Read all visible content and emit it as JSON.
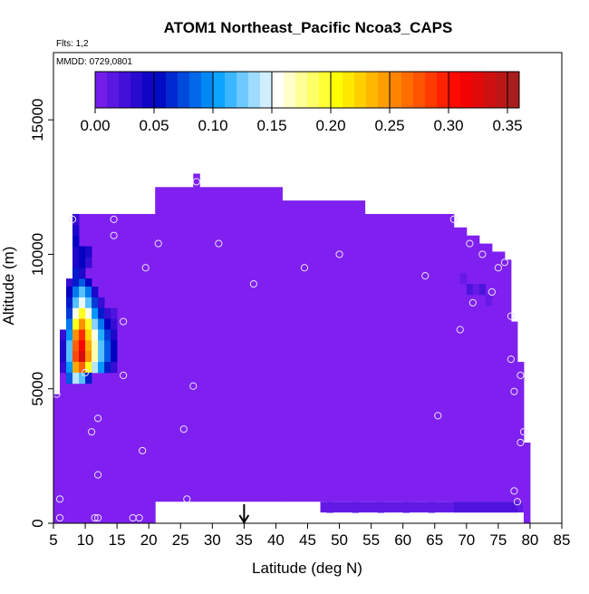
{
  "chart_data": {
    "type": "heatmap",
    "title": "ATOM1 Northeast_Pacific Ncoa3_CAPS",
    "note_flights": "Flts: 1,2",
    "note_dates": "MMDD: 0729,0801",
    "xlabel": "Latitude (deg N)",
    "ylabel": "Altitude (m)",
    "xlim": [
      5,
      85
    ],
    "ylim": [
      0,
      17500
    ],
    "x_ticks": [
      5,
      10,
      15,
      20,
      25,
      30,
      35,
      40,
      45,
      50,
      55,
      60,
      65,
      70,
      75,
      80,
      85
    ],
    "x_tick_labels": [
      "5",
      "10",
      "15",
      "20",
      "25",
      "30",
      "35",
      "40",
      "45",
      "50",
      "55",
      "60",
      "65",
      "70",
      "75",
      "80",
      "85"
    ],
    "y_ticks": [
      0,
      5000,
      10000,
      15000
    ],
    "y_tick_labels": [
      "0",
      "5000",
      "10000",
      "15000"
    ],
    "colorbar": {
      "range": [
        0,
        0.36
      ],
      "ticks": [
        0,
        0.05,
        0.1,
        0.15,
        0.2,
        0.25,
        0.3,
        0.35
      ],
      "tick_labels": [
        "0.00",
        "0.05",
        "0.10",
        "0.15",
        "0.20",
        "0.25",
        "0.30",
        "0.35"
      ],
      "colors": [
        "#8020f0",
        "#0000c0",
        "#00a0ff",
        "#ffffff",
        "#ffff00",
        "#ff8000",
        "#ff0000",
        "#a02020"
      ]
    },
    "arrow_latitude": 35,
    "columns": [
      {
        "x": [
          5,
          6
        ],
        "ytop": 4800
      },
      {
        "x": [
          6,
          7
        ],
        "ytop": 7000
      },
      {
        "x": [
          7,
          8
        ],
        "ytop": 9000
      },
      {
        "x": [
          8,
          17
        ],
        "ytop": 11500
      },
      {
        "x": [
          17,
          21
        ],
        "ytop": 11500
      },
      {
        "x": [
          21,
          27
        ],
        "ytop": 12500
      },
      {
        "x": [
          27,
          28
        ],
        "ytop": 13000
      },
      {
        "x": [
          28,
          41
        ],
        "ytop": 12500
      },
      {
        "x": [
          41,
          54
        ],
        "ytop": 12000
      },
      {
        "x": [
          54,
          68
        ],
        "ytop": 11500
      },
      {
        "x": [
          68,
          70
        ],
        "ytop": 11000
      },
      {
        "x": [
          70,
          72
        ],
        "ytop": 10700
      },
      {
        "x": [
          72,
          74
        ],
        "ytop": 10400
      },
      {
        "x": [
          74,
          76
        ],
        "ytop": 10100
      },
      {
        "x": [
          76,
          77
        ],
        "ytop": 9800
      },
      {
        "x": [
          77,
          78
        ],
        "ytop": 7500
      },
      {
        "x": [
          78,
          79
        ],
        "ytop": 6000
      },
      {
        "x": [
          79,
          80
        ],
        "ytop": 3000
      }
    ],
    "columns_bottom": [
      {
        "x": [
          5,
          19
        ],
        "ybot": 0
      },
      {
        "x": [
          19,
          79
        ],
        "ybot": 800
      }
    ],
    "highlight_cells": [
      {
        "x": 7,
        "y": 8700,
        "v": 0.03
      },
      {
        "x": 8,
        "y": 8700,
        "v": 0.06
      },
      {
        "x": 9,
        "y": 8700,
        "v": 0.08
      },
      {
        "x": 10,
        "y": 8700,
        "v": 0.05
      },
      {
        "x": 7,
        "y": 8400,
        "v": 0.05
      },
      {
        "x": 8,
        "y": 8400,
        "v": 0.09
      },
      {
        "x": 9,
        "y": 8400,
        "v": 0.12
      },
      {
        "x": 10,
        "y": 8400,
        "v": 0.09
      },
      {
        "x": 11,
        "y": 8400,
        "v": 0.04
      },
      {
        "x": 7,
        "y": 8000,
        "v": 0.06
      },
      {
        "x": 8,
        "y": 8000,
        "v": 0.12
      },
      {
        "x": 9,
        "y": 8000,
        "v": 0.15
      },
      {
        "x": 10,
        "y": 8000,
        "v": 0.12
      },
      {
        "x": 11,
        "y": 8000,
        "v": 0.07
      },
      {
        "x": 12,
        "y": 8000,
        "v": 0.03
      },
      {
        "x": 7,
        "y": 7600,
        "v": 0.07
      },
      {
        "x": 8,
        "y": 7600,
        "v": 0.16
      },
      {
        "x": 9,
        "y": 7600,
        "v": 0.2
      },
      {
        "x": 10,
        "y": 7600,
        "v": 0.16
      },
      {
        "x": 11,
        "y": 7600,
        "v": 0.1
      },
      {
        "x": 12,
        "y": 7600,
        "v": 0.06
      },
      {
        "x": 13,
        "y": 7600,
        "v": 0.03
      },
      {
        "x": 14,
        "y": 7600,
        "v": 0.02
      },
      {
        "x": 7,
        "y": 7200,
        "v": 0.09
      },
      {
        "x": 8,
        "y": 7200,
        "v": 0.2
      },
      {
        "x": 9,
        "y": 7200,
        "v": 0.25
      },
      {
        "x": 10,
        "y": 7200,
        "v": 0.2
      },
      {
        "x": 11,
        "y": 7200,
        "v": 0.13
      },
      {
        "x": 12,
        "y": 7200,
        "v": 0.09
      },
      {
        "x": 13,
        "y": 7200,
        "v": 0.05
      },
      {
        "x": 14,
        "y": 7200,
        "v": 0.03
      },
      {
        "x": 6,
        "y": 6800,
        "v": 0.03
      },
      {
        "x": 7,
        "y": 6800,
        "v": 0.1
      },
      {
        "x": 8,
        "y": 6800,
        "v": 0.25
      },
      {
        "x": 9,
        "y": 6800,
        "v": 0.29
      },
      {
        "x": 10,
        "y": 6800,
        "v": 0.22
      },
      {
        "x": 11,
        "y": 6800,
        "v": 0.16
      },
      {
        "x": 12,
        "y": 6800,
        "v": 0.11
      },
      {
        "x": 13,
        "y": 6800,
        "v": 0.07
      },
      {
        "x": 14,
        "y": 6800,
        "v": 0.04
      },
      {
        "x": 6,
        "y": 6400,
        "v": 0.04
      },
      {
        "x": 7,
        "y": 6400,
        "v": 0.12
      },
      {
        "x": 8,
        "y": 6400,
        "v": 0.27
      },
      {
        "x": 9,
        "y": 6400,
        "v": 0.31
      },
      {
        "x": 10,
        "y": 6400,
        "v": 0.24
      },
      {
        "x": 11,
        "y": 6400,
        "v": 0.17
      },
      {
        "x": 12,
        "y": 6400,
        "v": 0.12
      },
      {
        "x": 13,
        "y": 6400,
        "v": 0.08
      },
      {
        "x": 14,
        "y": 6400,
        "v": 0.05
      },
      {
        "x": 6,
        "y": 6000,
        "v": 0.04
      },
      {
        "x": 7,
        "y": 6000,
        "v": 0.12
      },
      {
        "x": 8,
        "y": 6000,
        "v": 0.28
      },
      {
        "x": 9,
        "y": 6000,
        "v": 0.33
      },
      {
        "x": 10,
        "y": 6000,
        "v": 0.25
      },
      {
        "x": 11,
        "y": 6000,
        "v": 0.17
      },
      {
        "x": 12,
        "y": 6000,
        "v": 0.12
      },
      {
        "x": 13,
        "y": 6000,
        "v": 0.08
      },
      {
        "x": 14,
        "y": 6000,
        "v": 0.05
      },
      {
        "x": 6,
        "y": 5600,
        "v": 0.03
      },
      {
        "x": 7,
        "y": 5600,
        "v": 0.1
      },
      {
        "x": 8,
        "y": 5600,
        "v": 0.24
      },
      {
        "x": 9,
        "y": 5600,
        "v": 0.27
      },
      {
        "x": 10,
        "y": 5600,
        "v": 0.2
      },
      {
        "x": 11,
        "y": 5600,
        "v": 0.14
      },
      {
        "x": 12,
        "y": 5600,
        "v": 0.1
      },
      {
        "x": 13,
        "y": 5600,
        "v": 0.06
      },
      {
        "x": 14,
        "y": 5600,
        "v": 0.03
      },
      {
        "x": 7,
        "y": 5200,
        "v": 0.08
      },
      {
        "x": 8,
        "y": 5200,
        "v": 0.14
      },
      {
        "x": 9,
        "y": 5200,
        "v": 0.12
      },
      {
        "x": 10,
        "y": 5200,
        "v": 0.06
      },
      {
        "x": 8,
        "y": 9100,
        "v": 0.05
      },
      {
        "x": 8,
        "y": 9500,
        "v": 0.04
      },
      {
        "x": 9,
        "y": 9500,
        "v": 0.05
      },
      {
        "x": 10,
        "y": 9500,
        "v": 0.03
      },
      {
        "x": 8,
        "y": 9900,
        "v": 0.04
      },
      {
        "x": 9,
        "y": 9900,
        "v": 0.05
      },
      {
        "x": 10,
        "y": 9900,
        "v": 0.04
      },
      {
        "x": 8,
        "y": 10300,
        "v": 0.05
      },
      {
        "x": 8,
        "y": 10700,
        "v": 0.04
      },
      {
        "x": 8,
        "y": 11100,
        "v": 0.03
      },
      {
        "x": 8,
        "y": 9100,
        "v": 0.06
      },
      {
        "x": 9,
        "y": 9100,
        "v": 0.04
      },
      {
        "x": 48,
        "y": 400,
        "v": 0.01
      },
      {
        "x": 52,
        "y": 400,
        "v": 0.01
      },
      {
        "x": 56,
        "y": 400,
        "v": 0.01
      },
      {
        "x": 60,
        "y": 400,
        "v": 0.01
      },
      {
        "x": 64,
        "y": 400,
        "v": 0.01
      },
      {
        "x": 69,
        "y": 8900,
        "v": 0.01
      },
      {
        "x": 70,
        "y": 8500,
        "v": 0.02
      },
      {
        "x": 71,
        "y": 8500,
        "v": 0.01
      },
      {
        "x": 72,
        "y": 8500,
        "v": 0.02
      },
      {
        "x": 73,
        "y": 8100,
        "v": 0.01
      }
    ],
    "flight_points": [
      {
        "x": 5.5,
        "y": 4800
      },
      {
        "x": 6,
        "y": 900
      },
      {
        "x": 6,
        "y": 200
      },
      {
        "x": 10,
        "y": 5600
      },
      {
        "x": 8,
        "y": 11300
      },
      {
        "x": 11,
        "y": 3400
      },
      {
        "x": 12,
        "y": 3900
      },
      {
        "x": 12,
        "y": 1800
      },
      {
        "x": 12,
        "y": 200
      },
      {
        "x": 11.5,
        "y": 200
      },
      {
        "x": 14.5,
        "y": 11300
      },
      {
        "x": 14.5,
        "y": 10700
      },
      {
        "x": 16,
        "y": 7500
      },
      {
        "x": 16,
        "y": 5500
      },
      {
        "x": 17.5,
        "y": 200
      },
      {
        "x": 18.5,
        "y": 200
      },
      {
        "x": 19,
        "y": 2700
      },
      {
        "x": 19.5,
        "y": 9500
      },
      {
        "x": 21.5,
        "y": 10400
      },
      {
        "x": 25.5,
        "y": 3500
      },
      {
        "x": 26,
        "y": 900
      },
      {
        "x": 27,
        "y": 5100
      },
      {
        "x": 27.5,
        "y": 12700
      },
      {
        "x": 31,
        "y": 10400
      },
      {
        "x": 36.5,
        "y": 8900
      },
      {
        "x": 44.5,
        "y": 9500
      },
      {
        "x": 50,
        "y": 10000
      },
      {
        "x": 63.5,
        "y": 9200
      },
      {
        "x": 65.5,
        "y": 4000
      },
      {
        "x": 68,
        "y": 11300
      },
      {
        "x": 69,
        "y": 7200
      },
      {
        "x": 70.5,
        "y": 10400
      },
      {
        "x": 71,
        "y": 8200
      },
      {
        "x": 72.5,
        "y": 10000
      },
      {
        "x": 74,
        "y": 8600
      },
      {
        "x": 75,
        "y": 9500
      },
      {
        "x": 76,
        "y": 9700
      },
      {
        "x": 77,
        "y": 7700
      },
      {
        "x": 77,
        "y": 6100
      },
      {
        "x": 77.5,
        "y": 4900
      },
      {
        "x": 77.5,
        "y": 1200
      },
      {
        "x": 78,
        "y": 800
      },
      {
        "x": 78.5,
        "y": 5500
      },
      {
        "x": 78.5,
        "y": 3000
      },
      {
        "x": 79,
        "y": 3400
      }
    ]
  }
}
